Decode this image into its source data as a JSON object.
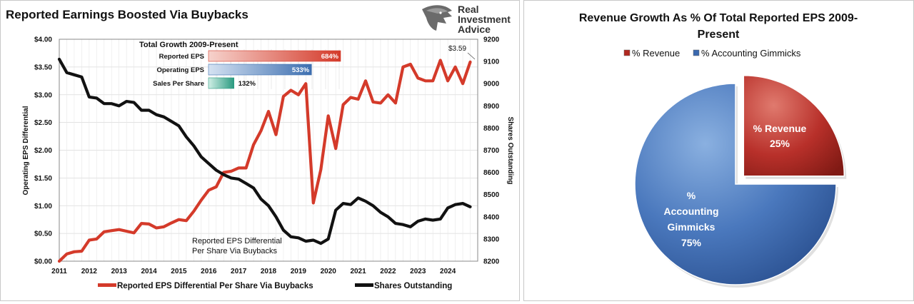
{
  "logo": {
    "line1": "Real",
    "line2": "Investment",
    "line3": "Advice"
  },
  "chart_data": [
    {
      "type": "line",
      "title": "Reported Earnings Boosted Via Buybacks",
      "ylabel": "Operating EPS Differential",
      "y2label": "Shares Outstanding",
      "ylim": [
        0,
        4
      ],
      "y2lim": [
        8200,
        9200
      ],
      "xlim": [
        2011,
        2025
      ],
      "x_ticks": [
        "2011",
        "2012",
        "2013",
        "2014",
        "2015",
        "2016",
        "2017",
        "2018",
        "2019",
        "2020",
        "2021",
        "2022",
        "2023",
        "2024"
      ],
      "y_ticks": [
        "$0.00",
        "$0.50",
        "$1.00",
        "$1.50",
        "$2.00",
        "$2.50",
        "$3.00",
        "$3.50",
        "$4.00"
      ],
      "y2_ticks": [
        "8200",
        "8300",
        "8400",
        "8500",
        "8600",
        "8700",
        "8800",
        "8900",
        "9000",
        "9100",
        "9200"
      ],
      "grid": true,
      "legend_position": "bottom",
      "annotation": {
        "line1": "Reported EPS Differential",
        "line2": "Per Share Via Buybacks"
      },
      "last_value_label": "$3.59",
      "series": [
        {
          "name": "Reported EPS Differential Per Share Via Buybacks",
          "color": "#d43a2a",
          "axis": "left",
          "x": [
            2011,
            2011.25,
            2011.5,
            2011.75,
            2012,
            2012.25,
            2012.5,
            2012.75,
            2013,
            2013.25,
            2013.5,
            2013.75,
            2014,
            2014.25,
            2014.5,
            2014.75,
            2015,
            2015.25,
            2015.5,
            2015.75,
            2016,
            2016.25,
            2016.5,
            2016.75,
            2017,
            2017.25,
            2017.5,
            2017.75,
            2018,
            2018.25,
            2018.5,
            2018.75,
            2019,
            2019.25,
            2019.5,
            2019.75,
            2020,
            2020.25,
            2020.5,
            2020.75,
            2021,
            2021.25,
            2021.5,
            2021.75,
            2022,
            2022.25,
            2022.5,
            2022.75,
            2023,
            2023.25,
            2023.5,
            2023.75,
            2024,
            2024.25,
            2024.5,
            2024.75
          ],
          "values": [
            0.0,
            0.13,
            0.17,
            0.18,
            0.38,
            0.4,
            0.53,
            0.55,
            0.57,
            0.54,
            0.51,
            0.68,
            0.67,
            0.6,
            0.62,
            0.69,
            0.75,
            0.73,
            0.9,
            1.1,
            1.28,
            1.34,
            1.6,
            1.62,
            1.68,
            1.68,
            2.1,
            2.35,
            2.7,
            2.28,
            2.97,
            3.08,
            3.0,
            3.2,
            1.05,
            1.65,
            2.62,
            2.03,
            2.82,
            2.95,
            2.92,
            3.25,
            2.87,
            2.85,
            3.0,
            2.85,
            3.5,
            3.55,
            3.3,
            3.25,
            3.25,
            3.62,
            3.25,
            3.5,
            3.2,
            3.59
          ]
        },
        {
          "name": "Shares Outstanding",
          "color": "#111111",
          "axis": "right",
          "x": [
            2011,
            2011.25,
            2011.5,
            2011.75,
            2012,
            2012.25,
            2012.5,
            2012.75,
            2013,
            2013.25,
            2013.5,
            2013.75,
            2014,
            2014.25,
            2014.5,
            2014.75,
            2015,
            2015.25,
            2015.5,
            2015.75,
            2016,
            2016.25,
            2016.5,
            2016.75,
            2017,
            2017.25,
            2017.5,
            2017.75,
            2018,
            2018.25,
            2018.5,
            2018.75,
            2019,
            2019.25,
            2019.5,
            2019.75,
            2020,
            2020.25,
            2020.5,
            2020.75,
            2021,
            2021.25,
            2021.5,
            2021.75,
            2022,
            2022.25,
            2022.5,
            2022.75,
            2023,
            2023.25,
            2023.5,
            2023.75,
            2024,
            2024.25,
            2024.5,
            2024.75
          ],
          "values": [
            9110,
            9050,
            9040,
            9030,
            8940,
            8935,
            8910,
            8910,
            8900,
            8920,
            8915,
            8880,
            8880,
            8860,
            8850,
            8830,
            8810,
            8760,
            8720,
            8670,
            8640,
            8610,
            8590,
            8575,
            8570,
            8550,
            8530,
            8480,
            8450,
            8400,
            8340,
            8310,
            8305,
            8290,
            8295,
            8280,
            8300,
            8430,
            8460,
            8455,
            8485,
            8470,
            8450,
            8420,
            8400,
            8370,
            8365,
            8355,
            8380,
            8390,
            8385,
            8390,
            8440,
            8455,
            8460,
            8445
          ]
        }
      ],
      "inset": {
        "title": "Total Growth 2009-Present",
        "bars": [
          {
            "label": "Reported EPS",
            "value": 684,
            "value_label": "684%",
            "color": "#d43a2a"
          },
          {
            "label": "Operating EPS",
            "value": 533,
            "value_label": "533%",
            "color": "#3d6fb0"
          },
          {
            "label": "Sales Per Share",
            "value": 132,
            "value_label": "132%",
            "color": "#2a9a80"
          }
        ]
      }
    },
    {
      "type": "pie",
      "title": "Revenue Growth As % Of Total Reported EPS 2009-Present",
      "title_line1": "Revenue Growth As % Of Total Reported EPS 2009-",
      "title_line2": "Present",
      "legend_position": "top",
      "slices": [
        {
          "name": "% Revenue",
          "value": 25,
          "label_line1": "% Revenue",
          "label_line2": "25%",
          "color": "#b02820",
          "exploded": true
        },
        {
          "name": "% Accounting Gimmicks",
          "value": 75,
          "label_line1": "%",
          "label_line2": "Accounting",
          "label_line3": "Gimmicks",
          "label_line4": "75%",
          "color": "#3a68ae",
          "exploded": false
        }
      ]
    }
  ]
}
